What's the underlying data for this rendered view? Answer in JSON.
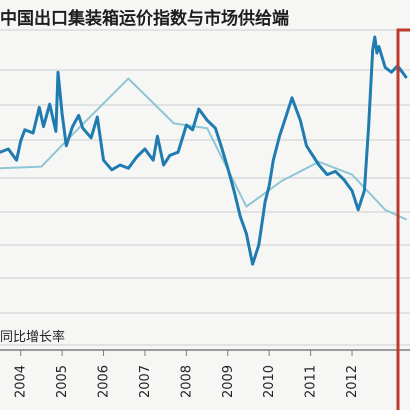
{
  "chart_data": {
    "type": "line",
    "title": "中国出口集装箱运价指数与市场供给端",
    "footnote": "同比增长率",
    "x_tick_labels": [
      "2004",
      "2005",
      "2006",
      "2007",
      "2008",
      "2009",
      "2010",
      "2011",
      "2012"
    ],
    "xlim": [
      2003.5,
      2013.4
    ],
    "grid": true,
    "legend": "none",
    "highlight_box_color": "#c0392b",
    "series": [
      {
        "color": "#1f7bb0",
        "x": [
          2003.5,
          2003.7,
          2003.9,
          2004.0,
          2004.1,
          2004.3,
          2004.45,
          2004.55,
          2004.7,
          2004.85,
          2004.9,
          2005.0,
          2005.1,
          2005.25,
          2005.4,
          2005.5,
          2005.7,
          2005.85,
          2006.0,
          2006.2,
          2006.4,
          2006.6,
          2006.8,
          2007.0,
          2007.2,
          2007.3,
          2007.45,
          2007.6,
          2007.8,
          2008.0,
          2008.15,
          2008.3,
          2008.5,
          2008.7,
          2008.85,
          2009.0,
          2009.15,
          2009.3,
          2009.45,
          2009.6,
          2009.75,
          2009.9,
          2010.0,
          2010.1,
          2010.25,
          2010.4,
          2010.55,
          2010.65,
          2010.75,
          2010.9,
          2011.0,
          2011.2,
          2011.4,
          2011.6,
          2011.8,
          2012.0,
          2012.15,
          2012.3,
          2012.4,
          2012.5,
          2012.55,
          2012.6,
          2012.65,
          2012.8,
          2012.95,
          2013.1,
          2013.3
        ],
        "y": [
          0.8,
          1.0,
          0.3,
          1.5,
          2.2,
          2.0,
          3.6,
          2.4,
          3.8,
          2.1,
          5.8,
          3.2,
          1.2,
          2.4,
          3.1,
          2.3,
          1.7,
          3.0,
          0.3,
          -0.3,
          0.0,
          -0.2,
          0.5,
          1.0,
          0.3,
          1.8,
          0.0,
          0.6,
          0.8,
          2.5,
          2.2,
          3.5,
          2.8,
          2.3,
          1.1,
          -0.2,
          -1.6,
          -3.2,
          -4.3,
          -6.2,
          -5.0,
          -2.3,
          -1.3,
          0.3,
          1.8,
          3.0,
          4.2,
          3.5,
          2.8,
          1.2,
          0.8,
          0.0,
          -0.6,
          -0.4,
          -0.9,
          -1.6,
          -2.8,
          -1.6,
          2.4,
          7.2,
          8.0,
          7.0,
          7.4,
          6.1,
          5.8,
          6.2,
          5.5
        ]
      },
      {
        "color": "#8fc6d6",
        "x": [
          2003.5,
          2004.5,
          2005.4,
          2006.6,
          2007.7,
          2008.5,
          2009.45,
          2010.3,
          2011.2,
          2012.0,
          2012.8,
          2013.3
        ],
        "y": [
          -0.2,
          -0.1,
          2.3,
          5.4,
          2.6,
          2.3,
          -2.6,
          -1.0,
          0.2,
          -0.6,
          -2.8,
          -3.4
        ]
      }
    ]
  }
}
